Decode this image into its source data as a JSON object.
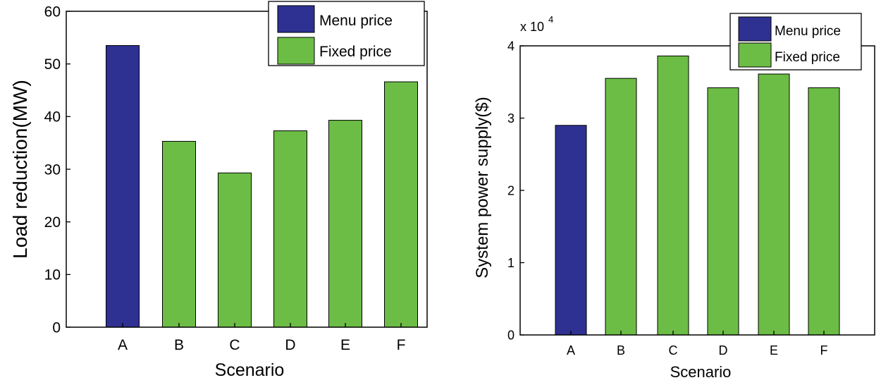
{
  "chart_data": [
    {
      "type": "bar",
      "categories": [
        "A",
        "B",
        "C",
        "D",
        "E",
        "F"
      ],
      "values": [
        53.5,
        35.3,
        29.3,
        37.3,
        39.3,
        46.6
      ],
      "bar_series": [
        "Menu price",
        "Fixed price",
        "Fixed price",
        "Fixed price",
        "Fixed price",
        "Fixed price"
      ],
      "xlabel": "Scenario",
      "ylabel": "Load reduction(MW)",
      "ylim": [
        0,
        60
      ],
      "yticks": [
        "0",
        "10",
        "20",
        "30",
        "40",
        "50",
        "60"
      ],
      "legend": [
        {
          "name": "Menu price",
          "color": "#2e3192"
        },
        {
          "name": "Fixed price",
          "color": "#6cbd45"
        }
      ],
      "legend_position": "top-right"
    },
    {
      "type": "bar",
      "categories": [
        "A",
        "B",
        "C",
        "D",
        "E",
        "F"
      ],
      "values": [
        29000,
        35500,
        38600,
        34200,
        36100,
        34200
      ],
      "bar_series": [
        "Menu price",
        "Fixed price",
        "Fixed price",
        "Fixed price",
        "Fixed price",
        "Fixed price"
      ],
      "xlabel": "Scenario",
      "ylabel": "System power supply($)",
      "ylim": [
        0,
        40000
      ],
      "yticks": [
        "0",
        "1",
        "2",
        "3",
        "4"
      ],
      "scale_label": "x 10",
      "scale_exponent": "4",
      "legend": [
        {
          "name": "Menu price",
          "color": "#2e3192"
        },
        {
          "name": "Fixed price",
          "color": "#6cbd45"
        }
      ],
      "legend_position": "top-right"
    }
  ]
}
